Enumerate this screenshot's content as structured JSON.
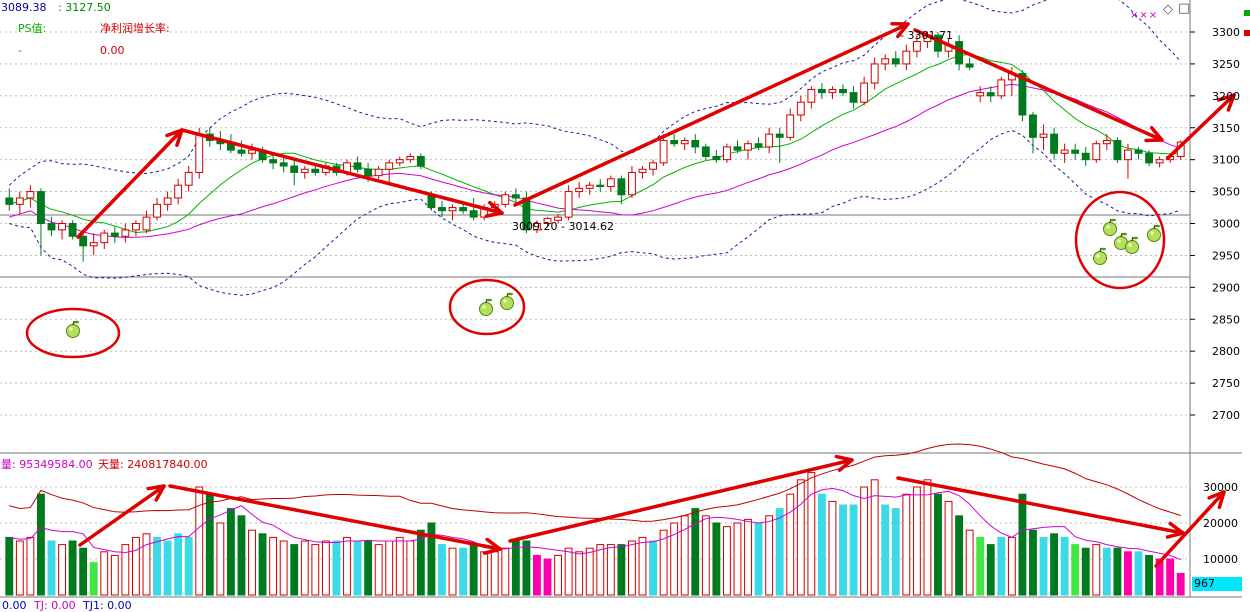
{
  "header": {
    "price_left": "3089.38",
    "price_right": "3127.50",
    "ps_label": "PS值:",
    "ps_value": "-",
    "growth_label": "净利润增长率:",
    "growth_value": "0.00"
  },
  "window_icons": {
    "dots": "×××",
    "diamond": "◇",
    "square": "□"
  },
  "volume_header": {
    "vol_label": "量: 95349584.00",
    "day_label": "天量: 240817840.00"
  },
  "bottom_bar": {
    "val1": "0.00",
    "tj_label": "TJ: 0.00",
    "tj1_label": "TJ1: 0.00"
  },
  "annotations": {
    "low_range": "3009.20 - 3014.62",
    "high_label": "3301.71"
  },
  "price_axis": {
    "ticks": [
      "3300",
      "3250",
      "3200",
      "3150",
      "3100",
      "3050",
      "3000",
      "2950",
      "2900",
      "2850",
      "2800",
      "2750",
      "2700"
    ],
    "ylim": [
      2650,
      3320
    ]
  },
  "volume_axis": {
    "ticks": [
      "30000",
      "20000",
      "10000"
    ],
    "current": "967"
  },
  "colors": {
    "up": "#d40000",
    "down": "#007a1f",
    "arrow": "#e00000",
    "bollinger": "#1a1aa8",
    "ma_fast": "#d400d4",
    "ma_slow": "#00b400",
    "cyan_bar": "#3cd9e6",
    "lime_bar": "#44e644",
    "magenta_bar": "#ff00aa"
  },
  "chart_data": {
    "type": "candlestick",
    "candles": [
      {
        "o": 3040,
        "h": 3055,
        "l": 3020,
        "c": 3030,
        "v": 16000,
        "vc": "down"
      },
      {
        "o": 3030,
        "h": 3050,
        "l": 3015,
        "c": 3040,
        "v": 15000,
        "vc": "up"
      },
      {
        "o": 3040,
        "h": 3060,
        "l": 3025,
        "c": 3050,
        "v": 16000,
        "vc": "up"
      },
      {
        "o": 3050,
        "h": 3055,
        "l": 2950,
        "c": 3000,
        "v": 28000,
        "vc": "down"
      },
      {
        "o": 3000,
        "h": 3010,
        "l": 2980,
        "c": 2990,
        "v": 15000,
        "vc": "cyan"
      },
      {
        "o": 2990,
        "h": 3005,
        "l": 2975,
        "c": 3000,
        "v": 14000,
        "vc": "up"
      },
      {
        "o": 3000,
        "h": 3005,
        "l": 2975,
        "c": 2980,
        "v": 15000,
        "vc": "down"
      },
      {
        "o": 2980,
        "h": 2990,
        "l": 2940,
        "c": 2965,
        "v": 13000,
        "vc": "down"
      },
      {
        "o": 2965,
        "h": 2985,
        "l": 2950,
        "c": 2970,
        "v": 9000,
        "vc": "lime"
      },
      {
        "o": 2970,
        "h": 2990,
        "l": 2960,
        "c": 2985,
        "v": 12000,
        "vc": "up"
      },
      {
        "o": 2985,
        "h": 2995,
        "l": 2970,
        "c": 2980,
        "v": 11000,
        "vc": "up"
      },
      {
        "o": 2980,
        "h": 3000,
        "l": 2970,
        "c": 2990,
        "v": 14000,
        "vc": "up"
      },
      {
        "o": 2990,
        "h": 3005,
        "l": 2980,
        "c": 3000,
        "v": 16000,
        "vc": "up"
      },
      {
        "o": 2990,
        "h": 3020,
        "l": 2985,
        "c": 3010,
        "v": 17000,
        "vc": "up"
      },
      {
        "o": 3010,
        "h": 3040,
        "l": 3005,
        "c": 3030,
        "v": 16000,
        "vc": "cyan"
      },
      {
        "o": 3030,
        "h": 3050,
        "l": 3020,
        "c": 3040,
        "v": 15000,
        "vc": "cyan"
      },
      {
        "o": 3040,
        "h": 3070,
        "l": 3030,
        "c": 3060,
        "v": 17000,
        "vc": "cyan"
      },
      {
        "o": 3060,
        "h": 3090,
        "l": 3050,
        "c": 3080,
        "v": 16000,
        "vc": "cyan"
      },
      {
        "o": 3080,
        "h": 3150,
        "l": 3070,
        "c": 3140,
        "v": 30000,
        "vc": "up"
      },
      {
        "o": 3140,
        "h": 3150,
        "l": 3120,
        "c": 3130,
        "v": 28000,
        "vc": "down"
      },
      {
        "o": 3130,
        "h": 3145,
        "l": 3115,
        "c": 3125,
        "v": 20000,
        "vc": "up"
      },
      {
        "o": 3125,
        "h": 3140,
        "l": 3110,
        "c": 3115,
        "v": 24000,
        "vc": "down"
      },
      {
        "o": 3115,
        "h": 3130,
        "l": 3105,
        "c": 3110,
        "v": 22000,
        "vc": "down"
      },
      {
        "o": 3110,
        "h": 3125,
        "l": 3100,
        "c": 3115,
        "v": 18000,
        "vc": "up"
      },
      {
        "o": 3115,
        "h": 3120,
        "l": 3095,
        "c": 3100,
        "v": 17000,
        "vc": "down"
      },
      {
        "o": 3100,
        "h": 3110,
        "l": 3085,
        "c": 3095,
        "v": 16000,
        "vc": "up"
      },
      {
        "o": 3095,
        "h": 3105,
        "l": 3080,
        "c": 3090,
        "v": 15000,
        "vc": "up"
      },
      {
        "o": 3090,
        "h": 3100,
        "l": 3060,
        "c": 3080,
        "v": 14000,
        "vc": "down"
      },
      {
        "o": 3080,
        "h": 3090,
        "l": 3070,
        "c": 3085,
        "v": 15000,
        "vc": "up"
      },
      {
        "o": 3085,
        "h": 3090,
        "l": 3075,
        "c": 3080,
        "v": 14000,
        "vc": "up"
      },
      {
        "o": 3080,
        "h": 3095,
        "l": 3075,
        "c": 3090,
        "v": 15000,
        "vc": "up"
      },
      {
        "o": 3090,
        "h": 3095,
        "l": 3075,
        "c": 3080,
        "v": 15000,
        "vc": "cyan"
      },
      {
        "o": 3080,
        "h": 3100,
        "l": 3075,
        "c": 3095,
        "v": 16000,
        "vc": "up"
      },
      {
        "o": 3095,
        "h": 3105,
        "l": 3080,
        "c": 3085,
        "v": 15000,
        "vc": "cyan"
      },
      {
        "o": 3085,
        "h": 3095,
        "l": 3065,
        "c": 3075,
        "v": 15000,
        "vc": "down"
      },
      {
        "o": 3075,
        "h": 3090,
        "l": 3070,
        "c": 3085,
        "v": 14000,
        "vc": "up"
      },
      {
        "o": 3085,
        "h": 3100,
        "l": 3060,
        "c": 3095,
        "v": 15000,
        "vc": "up"
      },
      {
        "o": 3095,
        "h": 3105,
        "l": 3090,
        "c": 3100,
        "v": 16000,
        "vc": "up"
      },
      {
        "o": 3100,
        "h": 3110,
        "l": 3095,
        "c": 3105,
        "v": 15000,
        "vc": "up"
      },
      {
        "o": 3105,
        "h": 3110,
        "l": 3085,
        "c": 3090,
        "v": 18000,
        "vc": "down"
      },
      {
        "o": 3045,
        "h": 3050,
        "l": 3020,
        "c": 3025,
        "v": 20000,
        "vc": "down"
      },
      {
        "o": 3025,
        "h": 3035,
        "l": 3010,
        "c": 3020,
        "v": 14000,
        "vc": "cyan"
      },
      {
        "o": 3020,
        "h": 3030,
        "l": 3005,
        "c": 3025,
        "v": 13000,
        "vc": "up"
      },
      {
        "o": 3025,
        "h": 3035,
        "l": 3015,
        "c": 3020,
        "v": 13000,
        "vc": "cyan"
      },
      {
        "o": 3020,
        "h": 3040,
        "l": 3005,
        "c": 3010,
        "v": 14000,
        "vc": "down"
      },
      {
        "o": 3010,
        "h": 3030,
        "l": 3005,
        "c": 3025,
        "v": 12000,
        "vc": "up"
      },
      {
        "o": 3025,
        "h": 3035,
        "l": 3020,
        "c": 3030,
        "v": 12000,
        "vc": "up"
      },
      {
        "o": 3030,
        "h": 3050,
        "l": 3025,
        "c": 3045,
        "v": 13000,
        "vc": "up"
      },
      {
        "o": 3045,
        "h": 3055,
        "l": 3030,
        "c": 3040,
        "v": 15000,
        "vc": "down"
      },
      {
        "o": 3040,
        "h": 3050,
        "l": 2985,
        "c": 2990,
        "v": 15000,
        "vc": "down"
      },
      {
        "o": 2990,
        "h": 3005,
        "l": 2985,
        "c": 3000,
        "v": 11000,
        "vc": "magenta"
      },
      {
        "o": 3000,
        "h": 3010,
        "l": 2995,
        "c": 3008,
        "v": 10000,
        "vc": "magenta"
      },
      {
        "o": 3005,
        "h": 3015,
        "l": 3000,
        "c": 3010,
        "v": 11000,
        "vc": "up"
      },
      {
        "o": 3010,
        "h": 3060,
        "l": 3005,
        "c": 3050,
        "v": 13000,
        "vc": "up"
      },
      {
        "o": 3050,
        "h": 3065,
        "l": 3040,
        "c": 3055,
        "v": 12000,
        "vc": "up"
      },
      {
        "o": 3055,
        "h": 3065,
        "l": 3045,
        "c": 3060,
        "v": 13000,
        "vc": "up"
      },
      {
        "o": 3060,
        "h": 3070,
        "l": 3050,
        "c": 3058,
        "v": 14000,
        "vc": "up"
      },
      {
        "o": 3058,
        "h": 3075,
        "l": 3050,
        "c": 3070,
        "v": 14000,
        "vc": "up"
      },
      {
        "o": 3070,
        "h": 3075,
        "l": 3030,
        "c": 3045,
        "v": 14000,
        "vc": "down"
      },
      {
        "o": 3045,
        "h": 3090,
        "l": 3040,
        "c": 3080,
        "v": 15000,
        "vc": "up"
      },
      {
        "o": 3080,
        "h": 3090,
        "l": 3070,
        "c": 3085,
        "v": 16000,
        "vc": "up"
      },
      {
        "o": 3085,
        "h": 3100,
        "l": 3075,
        "c": 3095,
        "v": 15000,
        "vc": "cyan"
      },
      {
        "o": 3095,
        "h": 3140,
        "l": 3090,
        "c": 3130,
        "v": 18000,
        "vc": "up"
      },
      {
        "o": 3130,
        "h": 3140,
        "l": 3120,
        "c": 3125,
        "v": 20000,
        "vc": "up"
      },
      {
        "o": 3125,
        "h": 3135,
        "l": 3115,
        "c": 3130,
        "v": 22000,
        "vc": "up"
      },
      {
        "o": 3130,
        "h": 3140,
        "l": 3110,
        "c": 3120,
        "v": 24000,
        "vc": "down"
      },
      {
        "o": 3120,
        "h": 3125,
        "l": 3100,
        "c": 3105,
        "v": 22000,
        "vc": "up"
      },
      {
        "o": 3105,
        "h": 3115,
        "l": 3095,
        "c": 3100,
        "v": 20000,
        "vc": "down"
      },
      {
        "o": 3100,
        "h": 3125,
        "l": 3095,
        "c": 3120,
        "v": 19000,
        "vc": "up"
      },
      {
        "o": 3120,
        "h": 3130,
        "l": 3110,
        "c": 3115,
        "v": 20000,
        "vc": "up"
      },
      {
        "o": 3115,
        "h": 3130,
        "l": 3100,
        "c": 3125,
        "v": 21000,
        "vc": "up"
      },
      {
        "o": 3125,
        "h": 3135,
        "l": 3115,
        "c": 3120,
        "v": 20000,
        "vc": "cyan"
      },
      {
        "o": 3120,
        "h": 3150,
        "l": 3110,
        "c": 3140,
        "v": 22000,
        "vc": "up"
      },
      {
        "o": 3140,
        "h": 3150,
        "l": 3095,
        "c": 3135,
        "v": 24000,
        "vc": "cyan"
      },
      {
        "o": 3135,
        "h": 3180,
        "l": 3130,
        "c": 3170,
        "v": 28000,
        "vc": "up"
      },
      {
        "o": 3170,
        "h": 3200,
        "l": 3160,
        "c": 3190,
        "v": 32000,
        "vc": "up"
      },
      {
        "o": 3190,
        "h": 3215,
        "l": 3180,
        "c": 3210,
        "v": 34000,
        "vc": "up"
      },
      {
        "o": 3210,
        "h": 3220,
        "l": 3195,
        "c": 3205,
        "v": 28000,
        "vc": "cyan"
      },
      {
        "o": 3205,
        "h": 3215,
        "l": 3195,
        "c": 3210,
        "v": 26000,
        "vc": "up"
      },
      {
        "o": 3210,
        "h": 3218,
        "l": 3200,
        "c": 3205,
        "v": 25000,
        "vc": "cyan"
      },
      {
        "o": 3205,
        "h": 3215,
        "l": 3180,
        "c": 3190,
        "v": 25000,
        "vc": "cyan"
      },
      {
        "o": 3190,
        "h": 3230,
        "l": 3185,
        "c": 3220,
        "v": 30000,
        "vc": "up"
      },
      {
        "o": 3220,
        "h": 3260,
        "l": 3210,
        "c": 3250,
        "v": 32000,
        "vc": "up"
      },
      {
        "o": 3250,
        "h": 3265,
        "l": 3240,
        "c": 3258,
        "v": 25000,
        "vc": "cyan"
      },
      {
        "o": 3258,
        "h": 3270,
        "l": 3245,
        "c": 3250,
        "v": 24000,
        "vc": "cyan"
      },
      {
        "o": 3250,
        "h": 3280,
        "l": 3240,
        "c": 3270,
        "v": 28000,
        "vc": "up"
      },
      {
        "o": 3270,
        "h": 3295,
        "l": 3260,
        "c": 3285,
        "v": 30000,
        "vc": "up"
      },
      {
        "o": 3285,
        "h": 3301,
        "l": 3275,
        "c": 3295,
        "v": 32000,
        "vc": "up"
      },
      {
        "o": 3295,
        "h": 3300,
        "l": 3260,
        "c": 3270,
        "v": 28000,
        "vc": "down"
      },
      {
        "o": 3270,
        "h": 3290,
        "l": 3260,
        "c": 3280,
        "v": 26000,
        "vc": "up"
      },
      {
        "o": 3285,
        "h": 3295,
        "l": 3240,
        "c": 3250,
        "v": 22000,
        "vc": "down"
      },
      {
        "o": 3250,
        "h": 3260,
        "l": 3240,
        "c": 3245,
        "v": 18000,
        "vc": "up"
      },
      {
        "o": 3200,
        "h": 3215,
        "l": 3190,
        "c": 3205,
        "v": 16000,
        "vc": "lime"
      },
      {
        "o": 3205,
        "h": 3215,
        "l": 3190,
        "c": 3200,
        "v": 14000,
        "vc": "down"
      },
      {
        "o": 3200,
        "h": 3230,
        "l": 3195,
        "c": 3225,
        "v": 16000,
        "vc": "cyan"
      },
      {
        "o": 3225,
        "h": 3245,
        "l": 3200,
        "c": 3235,
        "v": 16000,
        "vc": "up"
      },
      {
        "o": 3235,
        "h": 3240,
        "l": 3160,
        "c": 3170,
        "v": 28000,
        "vc": "down"
      },
      {
        "o": 3170,
        "h": 3175,
        "l": 3110,
        "c": 3135,
        "v": 18000,
        "vc": "down"
      },
      {
        "o": 3135,
        "h": 3155,
        "l": 3115,
        "c": 3140,
        "v": 16000,
        "vc": "cyan"
      },
      {
        "o": 3140,
        "h": 3150,
        "l": 3100,
        "c": 3110,
        "v": 17000,
        "vc": "down"
      },
      {
        "o": 3110,
        "h": 3125,
        "l": 3095,
        "c": 3115,
        "v": 16000,
        "vc": "cyan"
      },
      {
        "o": 3115,
        "h": 3125,
        "l": 3100,
        "c": 3110,
        "v": 14000,
        "vc": "lime"
      },
      {
        "o": 3110,
        "h": 3120,
        "l": 3090,
        "c": 3100,
        "v": 13000,
        "vc": "down"
      },
      {
        "o": 3100,
        "h": 3130,
        "l": 3095,
        "c": 3125,
        "v": 14000,
        "vc": "up"
      },
      {
        "o": 3125,
        "h": 3140,
        "l": 3115,
        "c": 3130,
        "v": 13000,
        "vc": "cyan"
      },
      {
        "o": 3130,
        "h": 3135,
        "l": 3095,
        "c": 3100,
        "v": 13000,
        "vc": "down"
      },
      {
        "o": 3100,
        "h": 3125,
        "l": 3070,
        "c": 3115,
        "v": 12000,
        "vc": "magenta"
      },
      {
        "o": 3115,
        "h": 3120,
        "l": 3100,
        "c": 3110,
        "v": 12000,
        "vc": "cyan"
      },
      {
        "o": 3110,
        "h": 3115,
        "l": 3090,
        "c": 3095,
        "v": 11000,
        "vc": "down"
      },
      {
        "o": 3095,
        "h": 3105,
        "l": 3088,
        "c": 3100,
        "v": 10000,
        "vc": "magenta"
      },
      {
        "o": 3100,
        "h": 3110,
        "l": 3095,
        "c": 3105,
        "v": 10000,
        "vc": "magenta"
      },
      {
        "o": 3105,
        "h": 3130,
        "l": 3100,
        "c": 3127.5,
        "v": 6000,
        "vc": "magenta"
      }
    ]
  }
}
